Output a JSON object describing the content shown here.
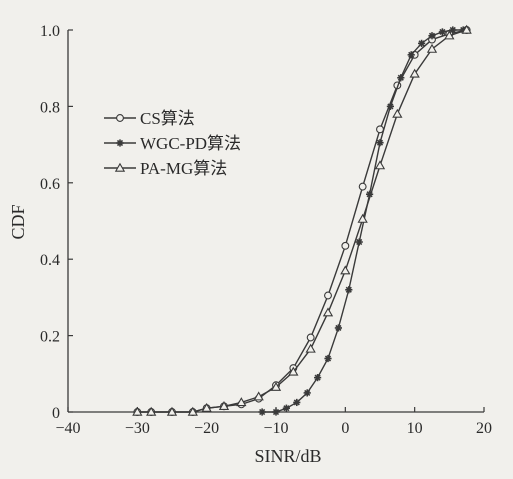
{
  "chart_data": {
    "type": "line",
    "title": "",
    "xlabel": "SINR/dB",
    "ylabel": "CDF",
    "xlim": [
      -40,
      20
    ],
    "ylim": [
      0,
      1
    ],
    "xticks": [
      -40,
      -30,
      -20,
      -10,
      0,
      10,
      20
    ],
    "xtick_labels": [
      "−40",
      "−30",
      "−20",
      "−10",
      "0",
      "10",
      "20"
    ],
    "yticks": [
      0,
      0.2,
      0.4,
      0.6,
      0.8,
      1.0
    ],
    "ytick_labels": [
      "0",
      "0.2",
      "0.4",
      "0.6",
      "0.8",
      "1.0"
    ],
    "grid": false,
    "legend_position": "left",
    "series": [
      {
        "name": "CS算法",
        "marker": "circle",
        "x": [
          -30,
          -28,
          -25,
          -22,
          -20,
          -17.5,
          -15,
          -12.5,
          -10,
          -7.5,
          -5,
          -2.5,
          0,
          2.5,
          5,
          7.5,
          10,
          12.5,
          15,
          17.5
        ],
        "y": [
          0,
          0,
          0,
          0,
          0.01,
          0.015,
          0.02,
          0.035,
          0.07,
          0.115,
          0.195,
          0.305,
          0.435,
          0.59,
          0.74,
          0.855,
          0.935,
          0.975,
          0.99,
          1.0
        ]
      },
      {
        "name": "WGC-PD算法",
        "marker": "star",
        "x": [
          -12,
          -10,
          -8.5,
          -7,
          -5.5,
          -4,
          -2.5,
          -1,
          0.5,
          2,
          3.5,
          5,
          6.5,
          8,
          9.5,
          11,
          12.5,
          14,
          15.5,
          17
        ],
        "y": [
          0,
          0,
          0.01,
          0.025,
          0.05,
          0.09,
          0.14,
          0.22,
          0.32,
          0.445,
          0.57,
          0.705,
          0.8,
          0.875,
          0.935,
          0.965,
          0.985,
          0.995,
          1.0,
          1.0
        ]
      },
      {
        "name": "PA-MG算法",
        "marker": "triangle",
        "x": [
          -30,
          -28,
          -25,
          -22,
          -20,
          -17.5,
          -15,
          -12.5,
          -10,
          -7.5,
          -5,
          -2.5,
          0,
          2.5,
          5,
          7.5,
          10,
          12.5,
          15,
          17.5
        ],
        "y": [
          0,
          0,
          0,
          0,
          0.01,
          0.015,
          0.025,
          0.04,
          0.065,
          0.105,
          0.165,
          0.26,
          0.37,
          0.505,
          0.645,
          0.78,
          0.885,
          0.95,
          0.985,
          1.0
        ]
      }
    ]
  }
}
